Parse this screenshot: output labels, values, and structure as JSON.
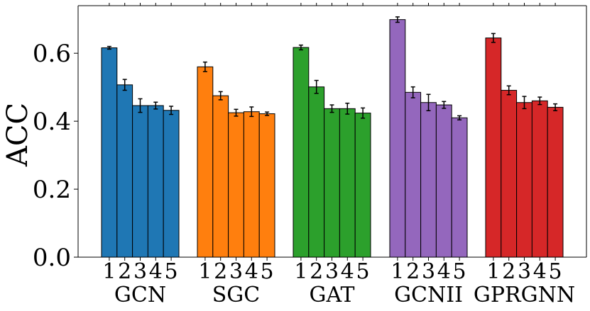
{
  "chart_data": {
    "type": "bar",
    "title": "",
    "xlabel": "",
    "ylabel": "ACC",
    "ylim": [
      0,
      0.74
    ],
    "yticks": [
      0.0,
      0.2,
      0.4,
      0.6
    ],
    "ytick_labels": [
      "0.0",
      "0.2",
      "0.4",
      "0.6"
    ],
    "grid": false,
    "groups": [
      {
        "name": "GCN",
        "color": "#1f77b4",
        "categories": [
          "1",
          "2",
          "3",
          "4",
          "5"
        ],
        "values": [
          0.616,
          0.507,
          0.446,
          0.446,
          0.432
        ],
        "errors": [
          0.004,
          0.016,
          0.02,
          0.01,
          0.012
        ]
      },
      {
        "name": "SGC",
        "color": "#ff7f0e",
        "categories": [
          "1",
          "2",
          "3",
          "4",
          "5"
        ],
        "values": [
          0.56,
          0.475,
          0.425,
          0.428,
          0.422
        ],
        "errors": [
          0.014,
          0.012,
          0.01,
          0.014,
          0.005
        ]
      },
      {
        "name": "GAT",
        "color": "#2ca02c",
        "categories": [
          "1",
          "2",
          "3",
          "4",
          "5"
        ],
        "values": [
          0.617,
          0.501,
          0.437,
          0.437,
          0.424
        ],
        "errors": [
          0.007,
          0.019,
          0.011,
          0.016,
          0.015
        ]
      },
      {
        "name": "GCNII",
        "color": "#9467bd",
        "categories": [
          "1",
          "2",
          "3",
          "4",
          "5"
        ],
        "values": [
          0.699,
          0.485,
          0.455,
          0.448,
          0.41
        ],
        "errors": [
          0.008,
          0.016,
          0.024,
          0.01,
          0.006
        ]
      },
      {
        "name": "GPRGNN",
        "color": "#d62728",
        "categories": [
          "1",
          "2",
          "3",
          "4",
          "5"
        ],
        "values": [
          0.645,
          0.491,
          0.455,
          0.46,
          0.441
        ],
        "errors": [
          0.013,
          0.013,
          0.018,
          0.011,
          0.01
        ]
      }
    ]
  }
}
